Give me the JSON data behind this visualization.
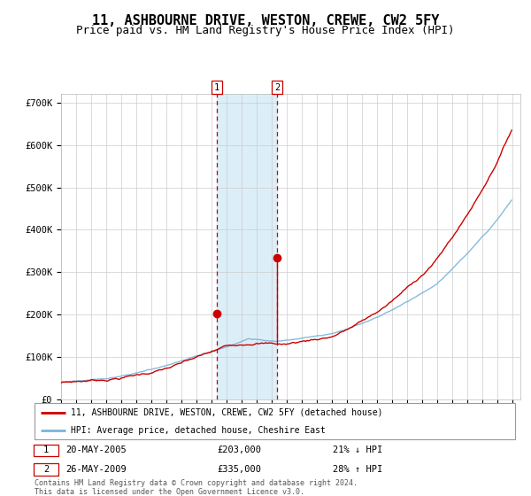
{
  "title": "11, ASHBOURNE DRIVE, WESTON, CREWE, CW2 5FY",
  "subtitle": "Price paid vs. HM Land Registry's House Price Index (HPI)",
  "title_fontsize": 11,
  "subtitle_fontsize": 9,
  "hpi_color": "#7ab4d8",
  "price_color": "#cc0000",
  "background_color": "#ffffff",
  "plot_bg_color": "#ffffff",
  "grid_color": "#cccccc",
  "highlight_color": "#dceef8",
  "ylim": [
    0,
    720000
  ],
  "yticks": [
    0,
    100000,
    200000,
    300000,
    400000,
    500000,
    600000,
    700000
  ],
  "ytick_labels": [
    "£0",
    "£100K",
    "£200K",
    "£300K",
    "£400K",
    "£500K",
    "£600K",
    "£700K"
  ],
  "x_start_year": 1995,
  "x_end_year": 2025,
  "transaction1": {
    "date": "20-MAY-2005",
    "price": 203000,
    "pct": "21%",
    "direction": "↓",
    "label": "1"
  },
  "transaction2": {
    "date": "26-MAY-2009",
    "price": 335000,
    "pct": "28%",
    "direction": "↑",
    "label": "2"
  },
  "legend_property": "11, ASHBOURNE DRIVE, WESTON, CREWE, CW2 5FY (detached house)",
  "legend_hpi": "HPI: Average price, detached house, Cheshire East",
  "footer": "Contains HM Land Registry data © Crown copyright and database right 2024.\nThis data is licensed under the Open Government Licence v3.0.",
  "marker_size": 6,
  "line_width": 1.0
}
